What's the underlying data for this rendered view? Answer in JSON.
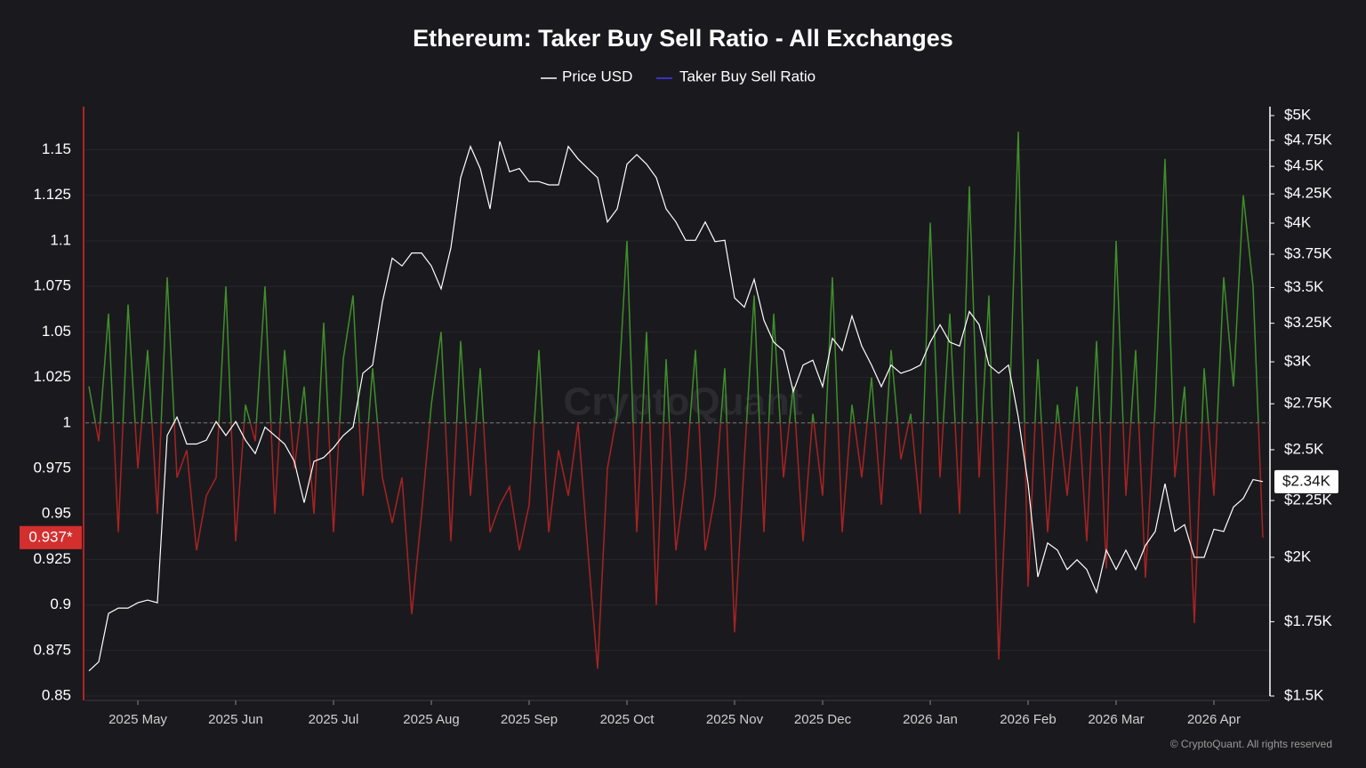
{
  "chart_data": {
    "type": "line",
    "title": "Ethereum: Taker Buy Sell Ratio - All Exchanges",
    "watermark": "CryptoQuant",
    "credit": "© CryptoQuant. All rights reserved",
    "categories": [
      null,
      null,
      null,
      null,
      null,
      "2025 May",
      null,
      null,
      null,
      null,
      null,
      null,
      null,
      null,
      null,
      "2025 Jun",
      null,
      null,
      null,
      null,
      null,
      null,
      null,
      null,
      null,
      "2025 Jul",
      null,
      null,
      null,
      null,
      null,
      null,
      null,
      null,
      null,
      "2025 Aug",
      null,
      null,
      null,
      null,
      null,
      null,
      null,
      null,
      null,
      "2025 Sep",
      null,
      null,
      null,
      null,
      null,
      null,
      null,
      null,
      null,
      "2025 Oct",
      null,
      null,
      null,
      null,
      null,
      null,
      null,
      null,
      null,
      null,
      "2025 Nov",
      null,
      null,
      null,
      null,
      null,
      null,
      null,
      null,
      "2025 Dec",
      null,
      null,
      null,
      null,
      null,
      null,
      null,
      null,
      null,
      null,
      "2026 Jan",
      null,
      null,
      null,
      null,
      null,
      null,
      null,
      null,
      null,
      "2026 Feb",
      null,
      null,
      null,
      null,
      null,
      null,
      null,
      null,
      "2026 Mar",
      null,
      null,
      null,
      null,
      null,
      null,
      null,
      null,
      null,
      "2026 Apr",
      null,
      null,
      null,
      null,
      null
    ],
    "series": [
      {
        "name": "Price USD",
        "color": "#ffffff",
        "axis": "y2",
        "values": [
          1580,
          1610,
          1780,
          1800,
          1800,
          1820,
          1830,
          1820,
          2575,
          2675,
          2530,
          2530,
          2550,
          2650,
          2575,
          2650,
          2550,
          2480,
          2620,
          2575,
          2530,
          2440,
          2240,
          2440,
          2460,
          2510,
          2575,
          2620,
          2930,
          2980,
          3395,
          3720,
          3660,
          3760,
          3760,
          3660,
          3490,
          3800,
          4395,
          4690,
          4480,
          4120,
          4740,
          4450,
          4480,
          4360,
          4360,
          4330,
          4330,
          4690,
          4570,
          4480,
          4395,
          4010,
          4120,
          4520,
          4610,
          4520,
          4395,
          4120,
          4010,
          3860,
          3860,
          4010,
          3850,
          3860,
          3425,
          3360,
          3560,
          3270,
          3125,
          3070,
          2820,
          2980,
          3010,
          2850,
          3150,
          3070,
          3300,
          3100,
          2980,
          2850,
          2980,
          2930,
          2950,
          2980,
          3125,
          3240,
          3125,
          3100,
          3330,
          3240,
          2980,
          2930,
          2980,
          2675,
          2330,
          1920,
          2060,
          2030,
          1950,
          1990,
          1950,
          1860,
          2030,
          1950,
          2030,
          1950,
          2050,
          2110,
          2330,
          2110,
          2140,
          2000,
          2000,
          2120,
          2110,
          2220,
          2260,
          2350,
          2340
        ]
      },
      {
        "name": "Taker Buy Sell Ratio",
        "color": "#3b2fc9",
        "axis": "y",
        "above_color": "#3f8f2a",
        "below_color": "#a82323",
        "values": [
          1.02,
          0.99,
          1.06,
          0.94,
          1.065,
          0.975,
          1.04,
          0.95,
          1.08,
          0.97,
          0.985,
          0.93,
          0.96,
          0.97,
          1.075,
          0.935,
          1.01,
          0.99,
          1.075,
          0.95,
          1.04,
          0.975,
          1.02,
          0.95,
          1.055,
          0.94,
          1.035,
          1.07,
          0.96,
          1.03,
          0.97,
          0.945,
          0.97,
          0.895,
          0.95,
          1.01,
          1.05,
          0.935,
          1.045,
          0.96,
          1.03,
          0.94,
          0.955,
          0.965,
          0.93,
          0.955,
          1.04,
          0.94,
          0.985,
          0.96,
          1.0,
          0.93,
          0.865,
          0.975,
          1.005,
          1.1,
          0.94,
          1.05,
          0.9,
          1.035,
          0.93,
          0.97,
          1.04,
          0.93,
          0.96,
          1.03,
          0.885,
          0.98,
          1.07,
          0.94,
          1.06,
          0.97,
          1.02,
          0.935,
          1.005,
          0.96,
          1.08,
          0.94,
          1.01,
          0.97,
          1.025,
          0.955,
          1.04,
          0.98,
          1.005,
          0.95,
          1.11,
          0.97,
          1.06,
          0.95,
          1.13,
          0.97,
          1.07,
          0.87,
          0.99,
          1.16,
          0.91,
          1.035,
          0.94,
          1.01,
          0.96,
          1.02,
          0.935,
          1.045,
          0.92,
          1.1,
          0.96,
          1.04,
          0.915,
          1.01,
          1.145,
          0.97,
          1.02,
          0.89,
          1.03,
          0.96,
          1.08,
          1.02,
          1.125,
          1.075,
          0.937
        ]
      }
    ],
    "baseline": 1,
    "ylim": [
      0.85,
      1.1737
    ],
    "yticks": [
      0.85,
      0.875,
      0.9,
      0.925,
      0.95,
      0.975,
      1,
      1.025,
      1.05,
      1.075,
      1.1,
      1.125,
      1.15
    ],
    "y2lim": [
      1500,
      5093
    ],
    "y2_log": true,
    "y2ticks": [
      {
        "value": 1500,
        "label": "$1.5K"
      },
      {
        "value": 1750,
        "label": "$1.75K"
      },
      {
        "value": 2000,
        "label": "$2K"
      },
      {
        "value": 2250,
        "label": "$2.25K"
      },
      {
        "value": 2500,
        "label": "$2.5K"
      },
      {
        "value": 2750,
        "label": "$2.75K"
      },
      {
        "value": 3000,
        "label": "$3K"
      },
      {
        "value": 3250,
        "label": "$3.25K"
      },
      {
        "value": 3500,
        "label": "$3.5K"
      },
      {
        "value": 3750,
        "label": "$3.75K"
      },
      {
        "value": 4000,
        "label": "$4K"
      },
      {
        "value": 4250,
        "label": "$4.25K"
      },
      {
        "value": 4500,
        "label": "$4.5K"
      },
      {
        "value": 4750,
        "label": "$4.75K"
      },
      {
        "value": 5000,
        "label": "$5K"
      }
    ],
    "grid": true,
    "annotations": [
      {
        "label": "0.937*",
        "value": 0.937,
        "axis": "y",
        "color": "#d32f2f"
      },
      {
        "label": "$2.34K",
        "value": 2340,
        "axis": "y2",
        "color": "#ffffff"
      }
    ]
  }
}
